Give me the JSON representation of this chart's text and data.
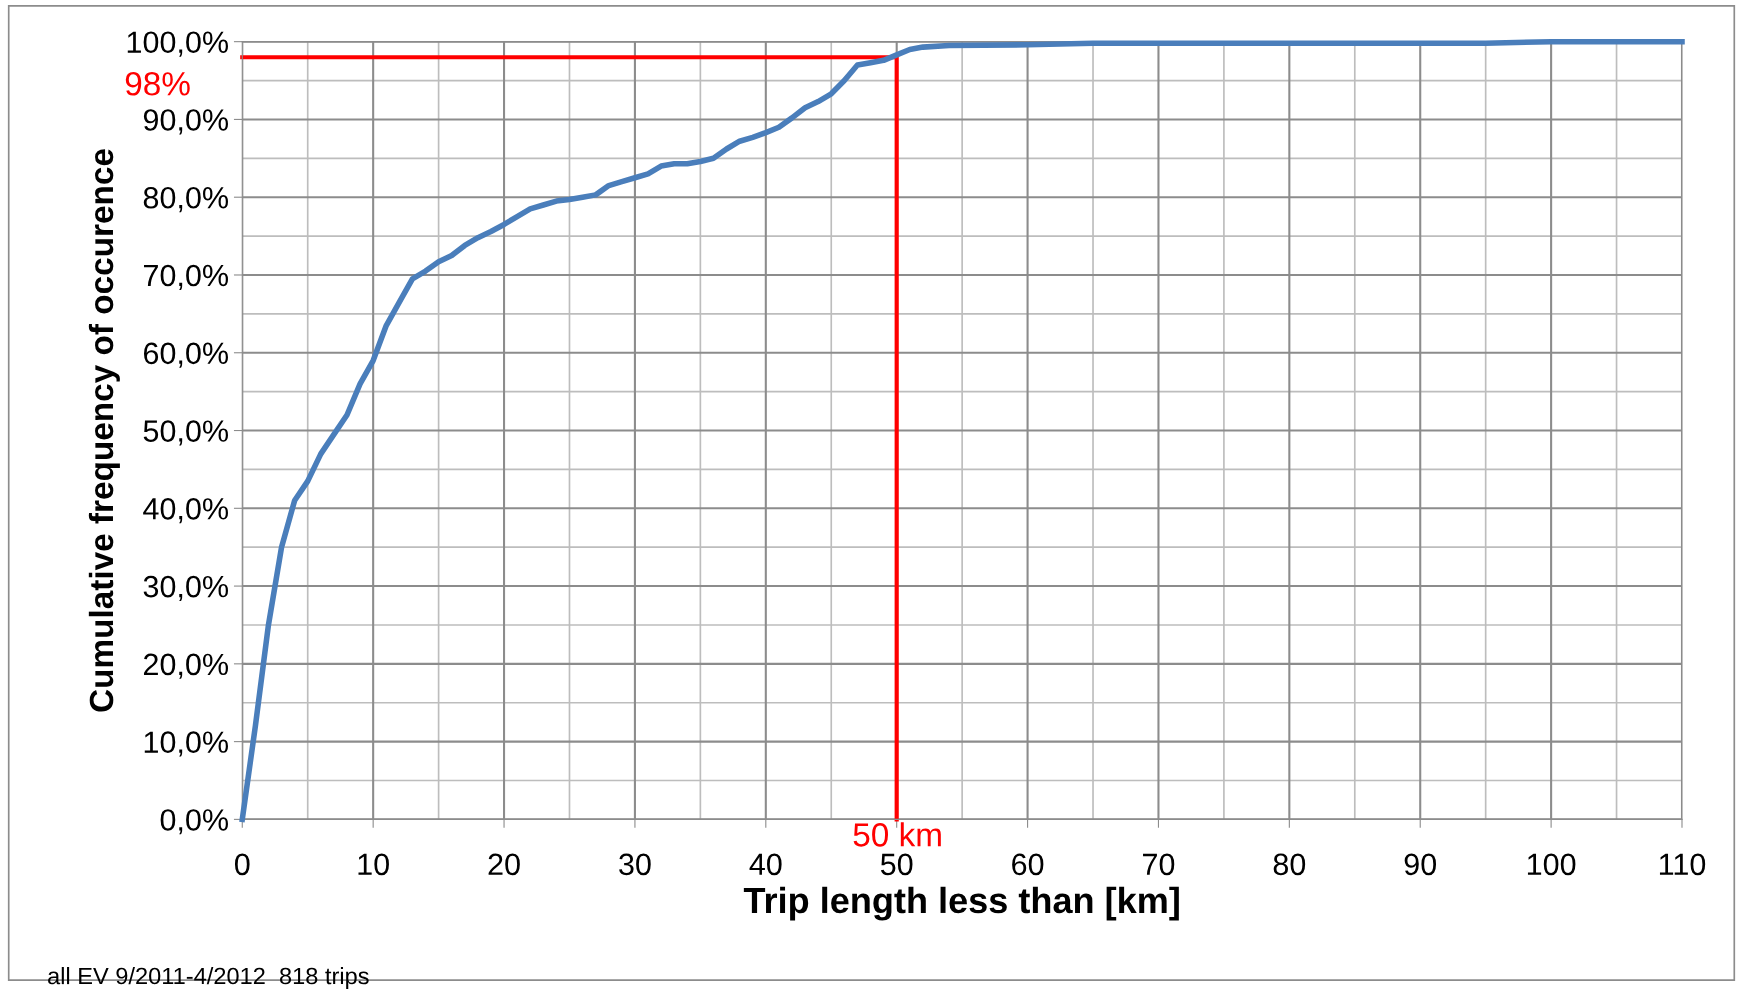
{
  "chart_data": {
    "type": "line",
    "xlabel": "Trip length less than [km]",
    "ylabel": "Cumulative frequency of occurence",
    "series": [
      {
        "color": "#4a7ebb",
        "x": [
          0,
          1,
          2,
          3,
          4,
          5,
          6,
          7,
          8,
          9,
          10,
          11,
          12,
          13,
          14,
          15,
          16,
          17,
          18,
          19,
          20,
          21,
          22,
          23,
          24,
          25,
          26,
          27,
          28,
          29,
          30,
          31,
          32,
          33,
          34,
          35,
          36,
          37,
          38,
          39,
          40,
          41,
          42,
          43,
          44,
          45,
          46,
          47,
          48,
          49,
          50,
          51,
          52,
          54,
          60,
          65,
          95,
          100,
          110
        ],
        "values": [
          0,
          12,
          25,
          35,
          41,
          43.5,
          47,
          49.5,
          52,
          56,
          59,
          63.5,
          66.5,
          69.5,
          70.5,
          71.7,
          72.5,
          73.8,
          74.8,
          75.6,
          76.5,
          77.5,
          78.5,
          79,
          79.5,
          79.7,
          80,
          80.3,
          81.5,
          82,
          82.5,
          83,
          84,
          84.3,
          84.3,
          84.6,
          85,
          86.2,
          87.2,
          87.7,
          88.3,
          89,
          90.2,
          91.5,
          92.3,
          93.3,
          95,
          97,
          97.3,
          97.6,
          98.3,
          99,
          99.3,
          99.5,
          99.6,
          99.8,
          99.8,
          100,
          100
        ]
      },
      {
        "color": "#ff0000",
        "x": [
          0,
          50,
          50
        ],
        "values": [
          98,
          98,
          0
        ]
      }
    ],
    "annotations": [
      {
        "text": "98%",
        "x": 0,
        "y": 98
      },
      {
        "text": "50 km",
        "x": 50,
        "y": 0
      },
      "all EV 9/2011-4/2012  818 trips"
    ],
    "xlim": [
      0,
      110
    ],
    "xticks": [
      0,
      10,
      20,
      30,
      40,
      50,
      60,
      70,
      80,
      90,
      100,
      110
    ],
    "ylim": [
      0,
      100
    ],
    "yticks": [
      {
        "value": 0,
        "label": "0,0%"
      },
      {
        "value": 10,
        "label": "10,0%"
      },
      {
        "value": 20,
        "label": "20,0%"
      },
      {
        "value": 30,
        "label": "30,0%"
      },
      {
        "value": 40,
        "label": "40,0%"
      },
      {
        "value": 50,
        "label": "50,0%"
      },
      {
        "value": 60,
        "label": "60,0%"
      },
      {
        "value": 70,
        "label": "70,0%"
      },
      {
        "value": 80,
        "label": "80,0%"
      },
      {
        "value": 90,
        "label": "90,0%"
      },
      {
        "value": 100,
        "label": "100,0%"
      }
    ],
    "grid": true,
    "marker": "none",
    "line_style": "solid"
  }
}
